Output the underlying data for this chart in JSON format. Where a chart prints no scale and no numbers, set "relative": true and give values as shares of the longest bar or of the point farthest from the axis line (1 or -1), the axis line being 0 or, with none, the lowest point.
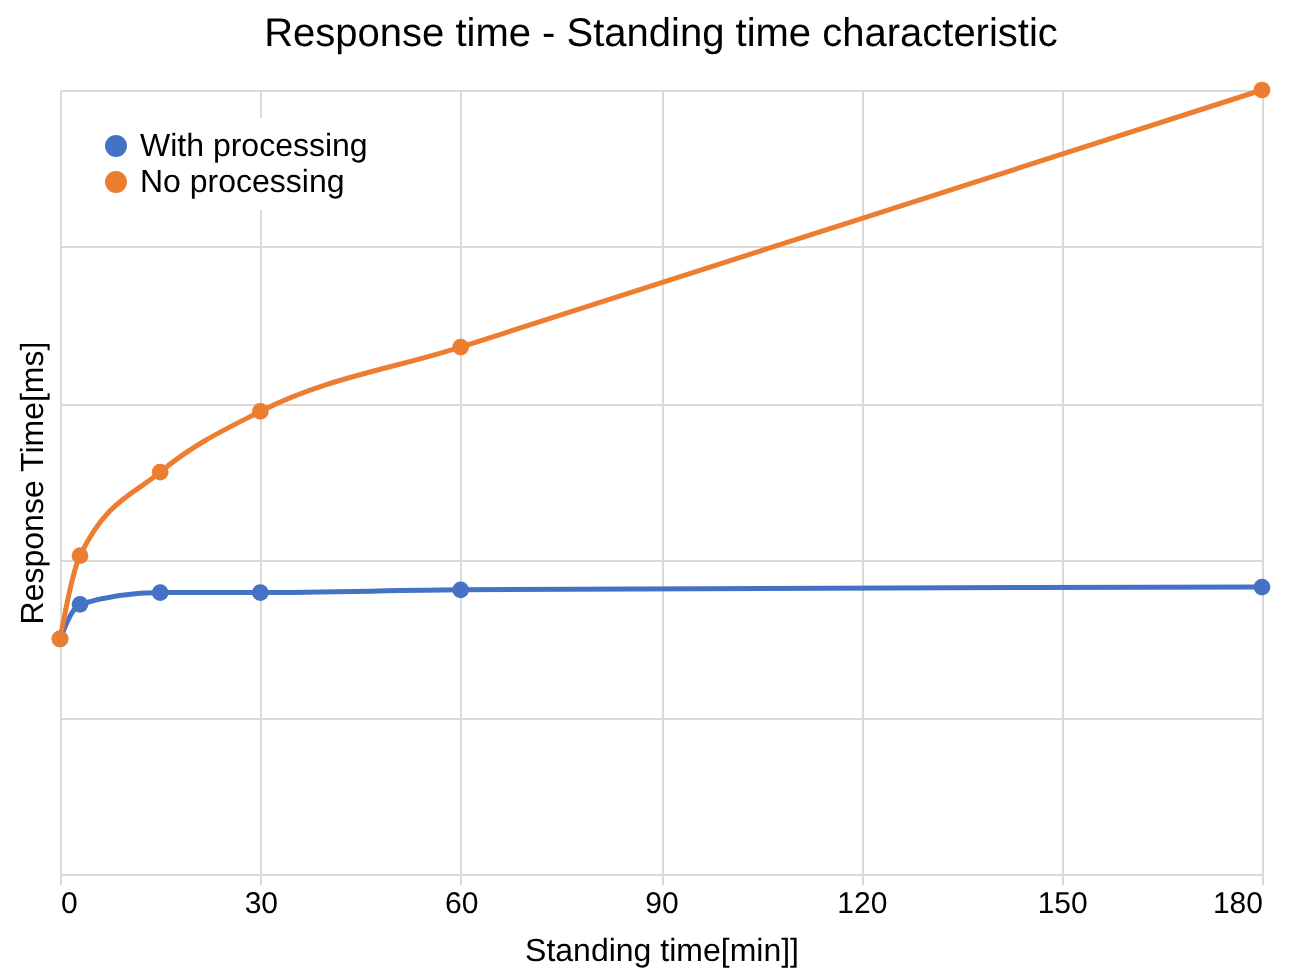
{
  "chart_data": {
    "type": "line",
    "title": "Response time - Standing time characteristic",
    "xlabel": "Standing time[min]]",
    "ylabel": "Response Time[ms]",
    "x": [
      0,
      3,
      15,
      30,
      60,
      180
    ],
    "xlim": [
      0,
      180
    ],
    "xticks": [
      0,
      30,
      60,
      90,
      120,
      150,
      180
    ],
    "relative": true,
    "series": [
      {
        "name": "With processing",
        "color": "#4472c4",
        "values": [
          0.3,
          0.344,
          0.359,
          0.359,
          0.3625,
          0.366
        ]
      },
      {
        "name": "No processing",
        "color": "#ed7d31",
        "values": [
          0.3,
          0.406,
          0.5125,
          0.59,
          0.672,
          1.0
        ]
      }
    ],
    "grid": true,
    "legend": "top left",
    "marker": "circle",
    "line_style": "solid"
  }
}
